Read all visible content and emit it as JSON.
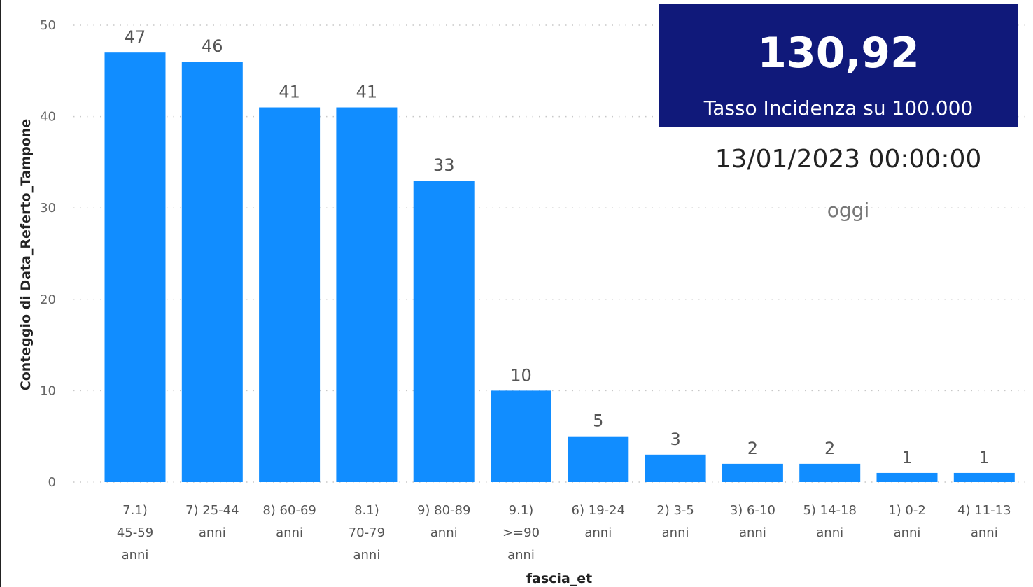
{
  "chart_data": {
    "type": "bar",
    "categories": [
      "7.1) 45-59 anni",
      "7) 25-44 anni",
      "8) 60-69 anni",
      "8.1) 70-79 anni",
      "9) 80-89 anni",
      "9.1) >=90 anni",
      "6) 19-24 anni",
      "2) 3-5 anni",
      "3) 6-10 anni",
      "5) 14-18 anni",
      "1) 0-2 anni",
      "4) 11-13 anni"
    ],
    "category_lines": [
      [
        "7.1)",
        "45-59",
        "anni"
      ],
      [
        "7) 25-44",
        "anni"
      ],
      [
        "8) 60-69",
        "anni"
      ],
      [
        "8.1)",
        "70-79",
        "anni"
      ],
      [
        "9) 80-89",
        "anni"
      ],
      [
        "9.1)",
        ">=90",
        "anni"
      ],
      [
        "6) 19-24",
        "anni"
      ],
      [
        "2) 3-5",
        "anni"
      ],
      [
        "3) 6-10",
        "anni"
      ],
      [
        "5) 14-18",
        "anni"
      ],
      [
        "1) 0-2",
        "anni"
      ],
      [
        "4) 11-13",
        "anni"
      ]
    ],
    "values": [
      47,
      46,
      41,
      41,
      33,
      10,
      5,
      3,
      2,
      2,
      1,
      1
    ],
    "xlabel": "fascia_et",
    "ylabel": "Conteggio di Data_Referto_Tampone",
    "ylim": [
      0,
      50
    ],
    "yticks": [
      0,
      10,
      20,
      30,
      40,
      50
    ],
    "grid": true,
    "bar_color": "#118dff"
  },
  "kpi": {
    "value": "130,92",
    "label": "Tasso Incidenza su 100.000",
    "background": "#10197a"
  },
  "date_card": {
    "value": "13/01/2023 00:00:00",
    "label": "oggi"
  }
}
